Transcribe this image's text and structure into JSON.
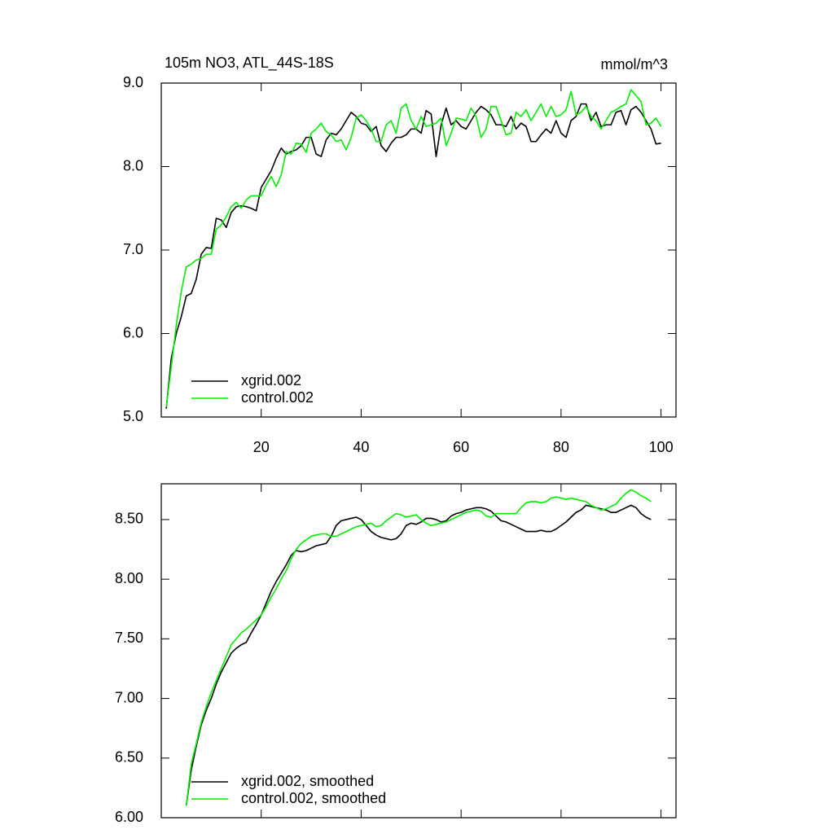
{
  "chart_data": [
    {
      "type": "line",
      "title": "105m NO3, ATL_44S-18S",
      "units": "mmol/m^3",
      "xlim": [
        0,
        103
      ],
      "xticks": [
        20,
        40,
        60,
        80,
        100
      ],
      "show_xtick_labels": true,
      "ylim": [
        5,
        9
      ],
      "yticks": [
        {
          "value": 5,
          "label": "5.0"
        },
        {
          "value": 6,
          "label": "6.0"
        },
        {
          "value": 7,
          "label": "7.0"
        },
        {
          "value": 8,
          "label": "8.0"
        },
        {
          "value": 9,
          "label": "9.0"
        }
      ],
      "legend": "lower left",
      "x": [
        1,
        2,
        3,
        4,
        5,
        6,
        7,
        8,
        9,
        10,
        11,
        12,
        13,
        14,
        15,
        16,
        17,
        18,
        19,
        20,
        21,
        22,
        23,
        24,
        25,
        26,
        27,
        28,
        29,
        30,
        31,
        32,
        33,
        34,
        35,
        36,
        37,
        38,
        39,
        40,
        41,
        42,
        43,
        44,
        45,
        46,
        47,
        48,
        49,
        50,
        51,
        52,
        53,
        54,
        55,
        56,
        57,
        58,
        59,
        60,
        61,
        62,
        63,
        64,
        65,
        66,
        67,
        68,
        69,
        70,
        71,
        72,
        73,
        74,
        75,
        76,
        77,
        78,
        79,
        80,
        81,
        82,
        83,
        84,
        85,
        86,
        87,
        88,
        89,
        90,
        91,
        92,
        93,
        94,
        95,
        96,
        97,
        98,
        99,
        100
      ],
      "series": [
        {
          "name": "xgrid.002",
          "color": "#000000",
          "values": [
            5.1,
            5.7,
            6.0,
            6.2,
            6.45,
            6.48,
            6.65,
            6.95,
            7.03,
            7.02,
            7.38,
            7.36,
            7.27,
            7.45,
            7.52,
            7.53,
            7.52,
            7.5,
            7.47,
            7.75,
            7.85,
            7.95,
            8.1,
            8.22,
            8.15,
            8.18,
            8.2,
            8.25,
            8.35,
            8.35,
            8.15,
            8.12,
            8.32,
            8.4,
            8.38,
            8.45,
            8.55,
            8.65,
            8.6,
            8.52,
            8.5,
            8.42,
            8.48,
            8.25,
            8.18,
            8.28,
            8.35,
            8.35,
            8.38,
            8.45,
            8.45,
            8.4,
            8.67,
            8.63,
            8.12,
            8.5,
            8.7,
            8.5,
            8.55,
            8.48,
            8.45,
            8.55,
            8.65,
            8.72,
            8.68,
            8.62,
            8.5,
            8.5,
            8.48,
            8.6,
            8.45,
            8.52,
            8.48,
            8.3,
            8.3,
            8.38,
            8.45,
            8.4,
            8.55,
            8.4,
            8.35,
            8.55,
            8.6,
            8.75,
            8.75,
            8.55,
            8.65,
            8.48,
            8.5,
            8.5,
            8.65,
            8.67,
            8.5,
            8.68,
            8.72,
            8.65,
            8.55,
            8.45,
            8.27,
            8.28
          ]
        },
        {
          "name": "control.002",
          "color": "#00ee00",
          "values": [
            5.12,
            5.6,
            6.1,
            6.5,
            6.8,
            6.83,
            6.88,
            6.9,
            6.95,
            6.95,
            7.25,
            7.3,
            7.4,
            7.52,
            7.57,
            7.5,
            7.6,
            7.65,
            7.65,
            7.65,
            7.78,
            7.88,
            7.76,
            7.9,
            8.18,
            8.15,
            8.28,
            8.27,
            8.17,
            8.4,
            8.45,
            8.52,
            8.42,
            8.38,
            8.3,
            8.32,
            8.2,
            8.35,
            8.58,
            8.62,
            8.55,
            8.45,
            8.3,
            8.3,
            8.5,
            8.55,
            8.4,
            8.7,
            8.75,
            8.55,
            8.45,
            8.6,
            8.48,
            8.5,
            8.52,
            8.58,
            8.25,
            8.4,
            8.58,
            8.57,
            8.55,
            8.7,
            8.6,
            8.35,
            8.45,
            8.72,
            8.72,
            8.55,
            8.38,
            8.4,
            8.65,
            8.6,
            8.68,
            8.55,
            8.65,
            8.75,
            8.6,
            8.72,
            8.6,
            8.62,
            8.68,
            8.9,
            8.62,
            8.65,
            8.72,
            8.6,
            8.55,
            8.45,
            8.55,
            8.65,
            8.68,
            8.72,
            8.75,
            8.92,
            8.85,
            8.78,
            8.5,
            8.52,
            8.58,
            8.48
          ]
        }
      ]
    },
    {
      "type": "line",
      "xlim": [
        0,
        103
      ],
      "xticks": [
        20,
        40,
        60,
        80,
        100
      ],
      "show_xtick_labels": false,
      "ylim": [
        6,
        8.8
      ],
      "yticks": [
        {
          "value": 6,
          "label": "6.00"
        },
        {
          "value": 6.5,
          "label": "6.50"
        },
        {
          "value": 7,
          "label": "7.00"
        },
        {
          "value": 7.5,
          "label": "7.50"
        },
        {
          "value": 8,
          "label": "8.00"
        },
        {
          "value": 8.5,
          "label": "8.50"
        }
      ],
      "legend": "lower left",
      "x": [
        5,
        6,
        7,
        8,
        9,
        10,
        11,
        12,
        13,
        14,
        15,
        16,
        17,
        18,
        19,
        20,
        21,
        22,
        23,
        24,
        25,
        26,
        27,
        28,
        29,
        30,
        31,
        32,
        33,
        34,
        35,
        36,
        37,
        38,
        39,
        40,
        41,
        42,
        43,
        44,
        45,
        46,
        47,
        48,
        49,
        50,
        51,
        52,
        53,
        54,
        55,
        56,
        57,
        58,
        59,
        60,
        61,
        62,
        63,
        64,
        65,
        66,
        67,
        68,
        69,
        70,
        71,
        72,
        73,
        74,
        75,
        76,
        77,
        78,
        79,
        80,
        81,
        82,
        83,
        84,
        85,
        86,
        87,
        88,
        89,
        90,
        91,
        92,
        93,
        94,
        95,
        96,
        97,
        98
      ],
      "series": [
        {
          "name": "xgrid.002, smoothed",
          "color": "#000000",
          "values": [
            6.1,
            6.4,
            6.6,
            6.78,
            6.9,
            7.0,
            7.12,
            7.22,
            7.3,
            7.38,
            7.42,
            7.45,
            7.47,
            7.55,
            7.62,
            7.7,
            7.8,
            7.9,
            7.98,
            8.05,
            8.12,
            8.2,
            8.24,
            8.23,
            8.24,
            8.26,
            8.28,
            8.29,
            8.3,
            8.36,
            8.45,
            8.49,
            8.5,
            8.51,
            8.52,
            8.5,
            8.45,
            8.4,
            8.37,
            8.35,
            8.34,
            8.33,
            8.34,
            8.38,
            8.45,
            8.47,
            8.46,
            8.48,
            8.51,
            8.51,
            8.5,
            8.48,
            8.49,
            8.53,
            8.55,
            8.56,
            8.58,
            8.59,
            8.6,
            8.6,
            8.59,
            8.57,
            8.53,
            8.49,
            8.48,
            8.46,
            8.44,
            8.42,
            8.4,
            8.4,
            8.4,
            8.41,
            8.4,
            8.4,
            8.42,
            8.45,
            8.48,
            8.52,
            8.56,
            8.58,
            8.62,
            8.61,
            8.6,
            8.59,
            8.58,
            8.56,
            8.56,
            8.58,
            8.6,
            8.62,
            8.6,
            8.55,
            8.52,
            8.5
          ]
        },
        {
          "name": "control.002, smoothed",
          "color": "#00ee00",
          "values": [
            6.1,
            6.45,
            6.62,
            6.8,
            6.93,
            7.05,
            7.15,
            7.25,
            7.35,
            7.45,
            7.5,
            7.55,
            7.58,
            7.62,
            7.66,
            7.7,
            7.77,
            7.85,
            7.92,
            8.0,
            8.07,
            8.17,
            8.25,
            8.3,
            8.33,
            8.36,
            8.37,
            8.38,
            8.38,
            8.36,
            8.36,
            8.38,
            8.4,
            8.42,
            8.44,
            8.45,
            8.46,
            8.47,
            8.44,
            8.45,
            8.49,
            8.52,
            8.55,
            8.54,
            8.52,
            8.53,
            8.54,
            8.5,
            8.47,
            8.45,
            8.46,
            8.47,
            8.48,
            8.5,
            8.52,
            8.54,
            8.56,
            8.57,
            8.58,
            8.57,
            8.53,
            8.52,
            8.55,
            8.55,
            8.55,
            8.55,
            8.55,
            8.6,
            8.64,
            8.65,
            8.65,
            8.64,
            8.65,
            8.68,
            8.69,
            8.68,
            8.67,
            8.68,
            8.67,
            8.66,
            8.65,
            8.62,
            8.6,
            8.58,
            8.59,
            8.61,
            8.63,
            8.68,
            8.72,
            8.75,
            8.73,
            8.7,
            8.68,
            8.65
          ]
        }
      ]
    }
  ]
}
